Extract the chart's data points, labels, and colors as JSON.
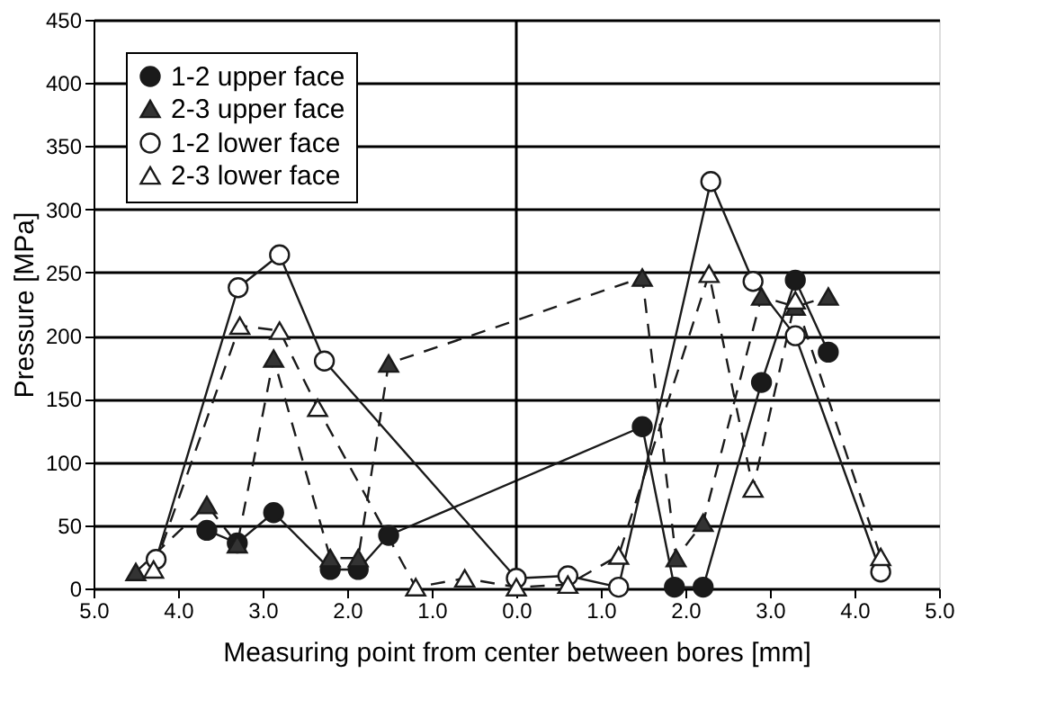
{
  "chart_data": {
    "type": "line",
    "xlabel": "Measuring point from center between bores [mm]",
    "ylabel": "Pressure [MPa]",
    "xlim": [
      -5,
      5
    ],
    "xticks": [
      {
        "value": -5,
        "label": "5.0"
      },
      {
        "value": -4,
        "label": "4.0"
      },
      {
        "value": -3,
        "label": "3.0"
      },
      {
        "value": -2,
        "label": "2.0"
      },
      {
        "value": -1,
        "label": "1.0"
      },
      {
        "value": 0,
        "label": "0.0"
      },
      {
        "value": 1,
        "label": "1.0"
      },
      {
        "value": 2,
        "label": "2.0"
      },
      {
        "value": 3,
        "label": "3.0"
      },
      {
        "value": 4,
        "label": "4.0"
      },
      {
        "value": 5,
        "label": "5.0"
      }
    ],
    "ylim": [
      0,
      450
    ],
    "yticks": [
      0,
      50,
      100,
      150,
      200,
      250,
      300,
      350,
      400,
      450
    ],
    "grid": "y",
    "legend": "top left",
    "ref_lines": [
      {
        "axis": "x",
        "value": 0,
        "label": null,
        "color": "#000000",
        "line_style": "solid"
      }
    ],
    "series": [
      {
        "name": "1-2 upper face",
        "color": "#1a1a1a",
        "marker": "circle",
        "line_style": "solid",
        "x": [
          -3.66,
          -3.3,
          -2.87,
          -2.2,
          -1.87,
          -1.51,
          1.49,
          1.87,
          2.21,
          2.9,
          3.3,
          3.69
        ],
        "values": [
          46,
          36,
          60,
          15,
          15,
          42,
          128,
          1,
          1,
          163,
          244,
          187
        ]
      },
      {
        "name": "2-3 upper face",
        "color": "#333333",
        "marker": "triangle",
        "line_style": "dashed",
        "x": [
          -4.5,
          -3.66,
          -3.3,
          -2.87,
          -2.2,
          -1.87,
          -1.51,
          1.49,
          1.89,
          2.21,
          2.9,
          3.3,
          3.69
        ],
        "values": [
          13,
          66,
          35,
          182,
          24,
          24,
          178,
          246,
          24,
          52,
          231,
          223,
          231
        ]
      },
      {
        "name": "1-2 lower face",
        "color": "#ffffff",
        "marker": "circle",
        "line_style": "solid",
        "x": [
          -4.26,
          -3.29,
          -2.8,
          -2.27,
          0,
          0.61,
          1.21,
          2.3,
          2.8,
          3.3,
          4.31
        ],
        "values": [
          23,
          238,
          264,
          180,
          8,
          10,
          1,
          322,
          243,
          200,
          13
        ]
      },
      {
        "name": "2-3 lower face",
        "color": "#ffffff",
        "marker": "triangle",
        "line_style": "dashed",
        "x": [
          -4.29,
          -3.27,
          -2.8,
          -2.35,
          -1.19,
          -0.61,
          0,
          0.61,
          1.21,
          2.28,
          2.8,
          3.3,
          4.31
        ],
        "values": [
          15,
          208,
          204,
          143,
          1,
          8,
          1,
          3,
          26,
          249,
          79,
          228,
          25
        ]
      }
    ]
  }
}
